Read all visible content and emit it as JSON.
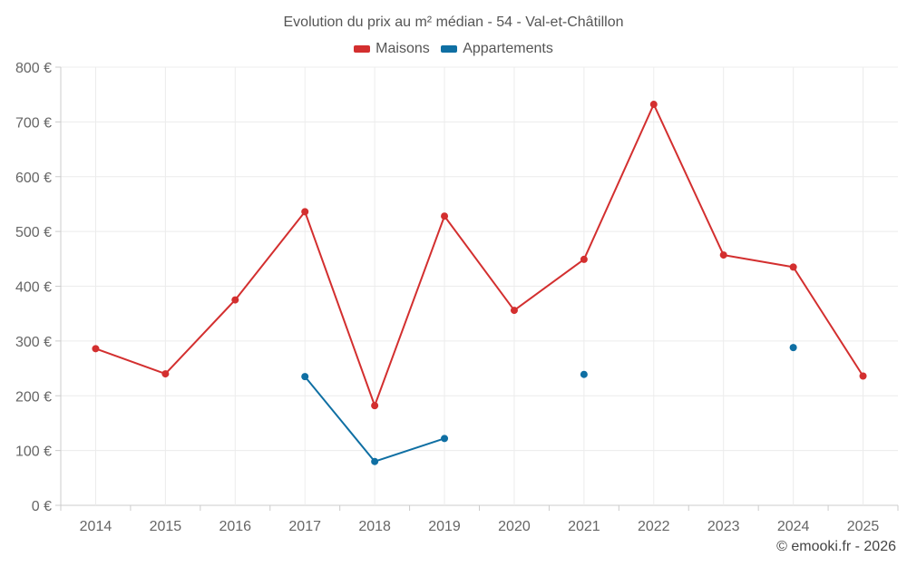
{
  "chart_data": {
    "type": "line",
    "title": "Evolution du prix au m² médian - 54 - Val-et-Châtillon",
    "categories": [
      "2014",
      "2015",
      "2016",
      "2017",
      "2018",
      "2019",
      "2020",
      "2021",
      "2022",
      "2023",
      "2024",
      "2025"
    ],
    "y_ticks": [
      "0 €",
      "100 €",
      "200 €",
      "300 €",
      "400 €",
      "500 €",
      "600 €",
      "700 €",
      "800 €"
    ],
    "ylim": [
      0,
      800
    ],
    "series": [
      {
        "name": "Maisons",
        "color": "#d32f2f",
        "values": [
          286,
          240,
          375,
          536,
          182,
          528,
          356,
          449,
          732,
          457,
          435,
          236
        ]
      },
      {
        "name": "Appartements",
        "color": "#0f6fa3",
        "values": [
          null,
          null,
          null,
          235,
          80,
          122,
          null,
          239,
          null,
          null,
          288,
          null
        ]
      }
    ],
    "legend_position": "top-center",
    "grid": true
  },
  "credit": "© emooki.fr - 2026"
}
